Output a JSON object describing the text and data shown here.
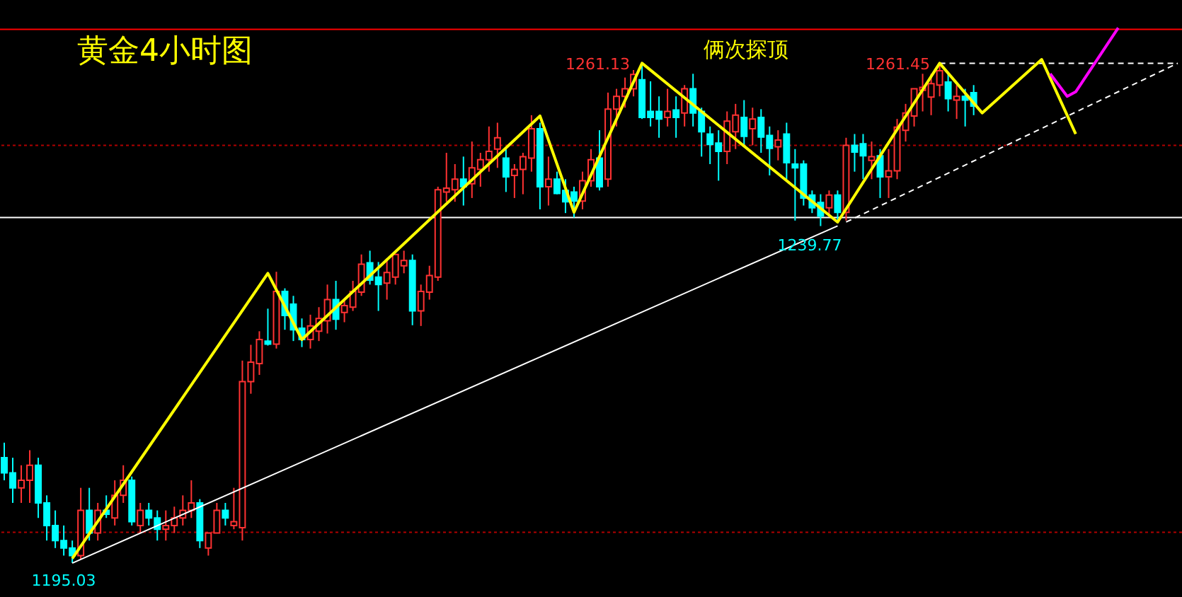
{
  "chart_data": {
    "type": "candlestick",
    "title": "黄金4小时图",
    "categories": [
      null,
      null,
      null,
      null,
      null,
      null,
      null,
      null,
      null,
      null,
      null,
      null,
      null,
      null,
      null,
      null,
      null,
      null,
      null,
      null,
      null,
      null,
      null,
      null,
      null,
      null,
      null,
      null,
      null,
      null,
      null,
      null,
      null,
      null,
      null,
      null,
      null,
      null,
      null,
      null,
      null,
      null,
      null,
      null,
      null,
      null,
      null,
      null,
      null,
      null,
      null,
      null,
      null,
      null,
      null,
      null,
      null,
      null,
      null,
      null,
      null,
      null,
      null,
      null,
      null,
      null,
      null,
      null,
      null,
      null,
      null,
      null,
      null,
      null,
      null,
      null,
      null,
      null,
      null,
      null,
      null,
      null,
      null,
      null,
      null,
      null,
      null,
      null,
      null,
      null,
      null,
      null,
      null,
      null,
      null,
      null,
      null,
      null,
      null,
      null,
      null,
      null,
      null,
      null,
      null,
      null,
      null,
      null,
      null,
      null,
      null,
      null,
      null,
      null,
      null,
      null,
      null,
      null,
      null,
      null,
      null,
      null,
      null,
      null,
      null,
      null,
      null,
      null,
      null,
      null,
      null,
      null,
      null,
      null,
      null,
      null,
      null,
      null,
      null
    ],
    "ohlc": [
      [
        1209,
        1211,
        1206,
        1207
      ],
      [
        1207,
        1209,
        1203,
        1205
      ],
      [
        1205,
        1208,
        1203,
        1206
      ],
      [
        1206,
        1210,
        1203,
        1208
      ],
      [
        1208,
        1209,
        1201,
        1203
      ],
      [
        1203,
        1204,
        1198,
        1200
      ],
      [
        1200,
        1202,
        1197,
        1198
      ],
      [
        1198,
        1200,
        1196,
        1197
      ],
      [
        1197,
        1198,
        1195.03,
        1196
      ],
      [
        1196,
        1205,
        1195.5,
        1202
      ],
      [
        1202,
        1205,
        1198,
        1199
      ],
      [
        1199,
        1203,
        1198,
        1202
      ],
      [
        1202,
        1204,
        1201,
        1201.5
      ],
      [
        1201,
        1206,
        1200,
        1204
      ],
      [
        1204,
        1208,
        1203,
        1206
      ],
      [
        1206,
        1206.5,
        1200,
        1200.5
      ],
      [
        1200,
        1203,
        1199,
        1202
      ],
      [
        1202,
        1203,
        1200,
        1201
      ],
      [
        1201,
        1202,
        1198,
        1199.5
      ],
      [
        1199.5,
        1202,
        1198,
        1200
      ],
      [
        1200,
        1202.5,
        1199,
        1201
      ],
      [
        1201,
        1204,
        1200,
        1202
      ],
      [
        1202,
        1206,
        1201,
        1203
      ],
      [
        1203,
        1203.5,
        1197,
        1198
      ],
      [
        1197,
        1199,
        1196,
        1199
      ],
      [
        1199,
        1203,
        1199,
        1202
      ],
      [
        1202,
        1203,
        1200,
        1201
      ],
      [
        1200,
        1205,
        1199.5,
        1200.5
      ],
      [
        1199.7,
        1221.9,
        1198,
        1219.1
      ],
      [
        1219.1,
        1224,
        1217.5,
        1221.7
      ],
      [
        1221.5,
        1225.8,
        1220,
        1224.7
      ],
      [
        1224.5,
        1228.8,
        1223.9,
        1224.1
      ],
      [
        1224.1,
        1233.7,
        1223.5,
        1231.1
      ],
      [
        1231.1,
        1231.5,
        1226,
        1227.9
      ],
      [
        1229.4,
        1230.5,
        1224.5,
        1226
      ],
      [
        1226.2,
        1227.5,
        1223.7,
        1224.7
      ],
      [
        1224.7,
        1228,
        1223.5,
        1226.5
      ],
      [
        1225.8,
        1229,
        1224.5,
        1227.5
      ],
      [
        1227.2,
        1232,
        1225.5,
        1230
      ],
      [
        1230,
        1232.5,
        1226,
        1227.4
      ],
      [
        1228.3,
        1230,
        1227,
        1229.2
      ],
      [
        1229,
        1232.5,
        1228.5,
        1231.1
      ],
      [
        1231,
        1236,
        1230.5,
        1234.7
      ],
      [
        1234.9,
        1236.5,
        1232,
        1232.6
      ],
      [
        1233,
        1235,
        1228.5,
        1232
      ],
      [
        1232.2,
        1235.5,
        1230,
        1233.6
      ],
      [
        1233,
        1236,
        1232,
        1236
      ],
      [
        1234.5,
        1236.5,
        1233.5,
        1235.2
      ],
      [
        1235.2,
        1236,
        1226.6,
        1228.5
      ],
      [
        1228.5,
        1232,
        1226.5,
        1231.1
      ],
      [
        1231,
        1234.5,
        1230,
        1233.2
      ],
      [
        1233,
        1245,
        1232.5,
        1244.6
      ],
      [
        1244.3,
        1249.5,
        1243,
        1244.8
      ],
      [
        1244.6,
        1248,
        1243,
        1246
      ],
      [
        1246,
        1249,
        1242.5,
        1245
      ],
      [
        1245.4,
        1251,
        1243.5,
        1247.5
      ],
      [
        1247.3,
        1249.5,
        1245,
        1248.6
      ],
      [
        1248.6,
        1253,
        1247,
        1249.7
      ],
      [
        1250,
        1253.5,
        1247.5,
        1251.5
      ],
      [
        1248.8,
        1250,
        1244.3,
        1246.3
      ],
      [
        1246.5,
        1248,
        1243.5,
        1247.3
      ],
      [
        1247.3,
        1249.5,
        1244,
        1249
      ],
      [
        1248.8,
        1254.5,
        1247,
        1252.7
      ],
      [
        1252.7,
        1253.5,
        1242,
        1245
      ],
      [
        1245,
        1249,
        1242.5,
        1246
      ],
      [
        1246,
        1247,
        1244,
        1244.1
      ],
      [
        1244.5,
        1246,
        1241.5,
        1243
      ],
      [
        1244.3,
        1245,
        1240.9,
        1243.1
      ],
      [
        1243.1,
        1247,
        1242,
        1245.8
      ],
      [
        1245.8,
        1250,
        1245,
        1248.6
      ],
      [
        1248.8,
        1252.5,
        1244.5,
        1245
      ],
      [
        1246,
        1257.5,
        1245,
        1255.3
      ],
      [
        1255.3,
        1258,
        1253,
        1257
      ],
      [
        1257,
        1259.5,
        1255.5,
        1258
      ],
      [
        1258,
        1260.5,
        1257,
        1259.9
      ],
      [
        1259.2,
        1261.13,
        1254,
        1254.2
      ],
      [
        1255,
        1259,
        1253,
        1254.2
      ],
      [
        1255,
        1257,
        1251.5,
        1254
      ],
      [
        1254.2,
        1258,
        1253,
        1255
      ],
      [
        1255.2,
        1257,
        1251.5,
        1254.2
      ],
      [
        1254.8,
        1258.5,
        1253,
        1258
      ],
      [
        1258,
        1260,
        1253,
        1254.8
      ],
      [
        1255,
        1255.5,
        1249,
        1252.3
      ],
      [
        1252,
        1253,
        1248,
        1250.6
      ],
      [
        1250.8,
        1252.5,
        1245.8,
        1249.7
      ],
      [
        1249.7,
        1255,
        1248,
        1253.7
      ],
      [
        1252.3,
        1256,
        1250,
        1254.5
      ],
      [
        1254.2,
        1256.5,
        1250.5,
        1251.7
      ],
      [
        1252.7,
        1255.5,
        1250.5,
        1254
      ],
      [
        1254.2,
        1255.3,
        1249.5,
        1251.6
      ],
      [
        1251.8,
        1253,
        1246.5,
        1250.1
      ],
      [
        1250.3,
        1252.5,
        1248.5,
        1251.2
      ],
      [
        1252,
        1253.5,
        1246,
        1248.2
      ],
      [
        1248,
        1250,
        1240.5,
        1247.5
      ],
      [
        1248,
        1248.5,
        1242.5,
        1243.5
      ],
      [
        1243.9,
        1244.5,
        1241.5,
        1242.2
      ],
      [
        1242.9,
        1244,
        1239.77,
        1241.1
      ],
      [
        1242.2,
        1244.5,
        1241,
        1243.9
      ],
      [
        1243.9,
        1244.5,
        1240.2,
        1241.6
      ],
      [
        1241.6,
        1251.5,
        1240.5,
        1250.5
      ],
      [
        1250.5,
        1252,
        1247,
        1249.6
      ],
      [
        1250.7,
        1252,
        1246,
        1249.1
      ],
      [
        1248.5,
        1251,
        1246,
        1249
      ],
      [
        1249.1,
        1250,
        1243.5,
        1246.3
      ],
      [
        1246.3,
        1250,
        1243.5,
        1247.1
      ],
      [
        1247.1,
        1254,
        1246,
        1252.9
      ],
      [
        1252.5,
        1256,
        1251,
        1254.8
      ],
      [
        1254.4,
        1258,
        1253,
        1258
      ],
      [
        1257.8,
        1260,
        1255,
        1258.2
      ],
      [
        1256.9,
        1260,
        1254.5,
        1258.7
      ],
      [
        1258.5,
        1261.45,
        1257,
        1260.4
      ],
      [
        1258.9,
        1260,
        1255,
        1256.7
      ],
      [
        1256.5,
        1258.5,
        1254,
        1257
      ],
      [
        1257,
        1258,
        1253,
        1256.5
      ],
      [
        1257.5,
        1258.5,
        1254.5,
        1255.7
      ],
      null,
      null,
      null,
      null,
      null,
      null,
      null,
      null,
      null,
      null,
      null,
      null,
      null,
      null,
      null,
      null,
      null,
      null,
      null,
      null,
      null,
      null,
      null,
      null
    ],
    "colors": [
      "#00ffff",
      "#00ffff",
      "#ff3232",
      "#ff3232",
      "#00ffff",
      "#00ffff",
      "#00ffff",
      "#00ffff",
      "#00ffff",
      "#ff3232",
      "#00ffff",
      "#ff3232",
      "#00ffff",
      "#ff3232",
      "#ff3232",
      "#00ffff",
      "#ff3232",
      "#00ffff",
      "#00ffff",
      "#ff3232",
      "#ff3232",
      "#ff3232",
      "#ff3232",
      "#00ffff",
      "#ff3232",
      "#ff3232",
      "#00ffff",
      "#ff3232",
      "#ff3232",
      "#ff3232",
      "#ff3232",
      "#00ffff",
      "#ff3232",
      "#00ffff",
      "#00ffff",
      "#00ffff",
      "#ff3232",
      "#ff3232",
      "#ff3232",
      "#00ffff",
      "#ff3232",
      "#ff3232",
      "#ff3232",
      "#00ffff",
      "#00ffff",
      "#ff3232",
      "#ff3232",
      "#ff3232",
      "#00ffff",
      "#ff3232",
      "#ff3232",
      "#ff3232",
      "#ff3232",
      "#ff3232",
      "#00ffff",
      "#ff3232",
      "#ff3232",
      "#ff3232",
      "#ff3232",
      "#00ffff",
      "#ff3232",
      "#ff3232",
      "#ff3232",
      "#00ffff",
      "#ff3232",
      "#00ffff",
      "#00ffff",
      "#00ffff",
      "#ff3232",
      "#ff3232",
      "#00ffff",
      "#ff3232",
      "#ff3232",
      "#ff3232",
      "#ff3232",
      "#00ffff",
      "#00ffff",
      "#00ffff",
      "#ff3232",
      "#00ffff",
      "#ff3232",
      "#00ffff",
      "#00ffff",
      "#00ffff",
      "#00ffff",
      "#ff3232",
      "#ff3232",
      "#00ffff",
      "#ff3232",
      "#00ffff",
      "#00ffff",
      "#ff3232",
      "#00ffff",
      "#00ffff",
      "#00ffff",
      "#00ffff",
      "#00ffff",
      "#ff3232",
      "#00ffff",
      "#ff3232",
      "#00ffff",
      "#00ffff",
      "#ff3232",
      "#00ffff",
      "#ff3232",
      "#ff3232",
      "#ff3232",
      "#ff3232",
      "#ff3232",
      "#ff3232",
      "#ff3232",
      "#00ffff",
      "#ff3232",
      "#00ffff",
      "#00ffff",
      null,
      null,
      null,
      null,
      null,
      null,
      null,
      null,
      null,
      null,
      null,
      null,
      null,
      null,
      null,
      null,
      null,
      null,
      null,
      null,
      null,
      null,
      null,
      null
    ],
    "ylim": [
      1190.5,
      1269.8
    ],
    "tick_labels": false,
    "series": [
      {
        "type": "line",
        "color": "#ffffff",
        "line_style": "solid",
        "values": [
          null,
          null,
          null,
          null,
          null,
          null,
          null,
          null,
          1195.0,
          null,
          null,
          null,
          null,
          null,
          null,
          null,
          null,
          null,
          null,
          null,
          null,
          null,
          null,
          null,
          null,
          null,
          null,
          null,
          null,
          null,
          null,
          null,
          null,
          null,
          null,
          null,
          null,
          null,
          null,
          null,
          null,
          null,
          null,
          null,
          null,
          null,
          null,
          null,
          null,
          null,
          null,
          null,
          null,
          null,
          null,
          null,
          null,
          null,
          null,
          null,
          null,
          null,
          null,
          null,
          null,
          null,
          null,
          null,
          null,
          null,
          null,
          null,
          null,
          null,
          null,
          null,
          null,
          null,
          null,
          null,
          null,
          null,
          null,
          null,
          null,
          null,
          null,
          null,
          null,
          null,
          null,
          null,
          null,
          null,
          null,
          null,
          null,
          null,
          1239.8,
          null,
          null,
          null,
          null,
          null,
          null,
          null,
          null,
          null,
          null,
          null,
          null,
          null,
          null,
          null,
          null,
          null,
          null,
          null,
          null,
          null,
          null,
          null,
          null,
          null,
          null,
          null,
          null,
          null,
          null,
          null,
          null,
          null,
          null,
          null,
          null,
          null,
          null,
          null,
          null
        ]
      },
      {
        "type": "line",
        "color": "#ffffff",
        "line_style": "dashed",
        "values": [
          null,
          null,
          null,
          null,
          null,
          null,
          null,
          null,
          null,
          null,
          null,
          null,
          null,
          null,
          null,
          null,
          null,
          null,
          null,
          null,
          null,
          null,
          null,
          null,
          null,
          null,
          null,
          null,
          null,
          null,
          null,
          null,
          null,
          null,
          null,
          null,
          null,
          null,
          null,
          null,
          null,
          null,
          null,
          null,
          null,
          null,
          null,
          null,
          null,
          null,
          null,
          null,
          null,
          null,
          null,
          null,
          null,
          null,
          null,
          null,
          null,
          null,
          null,
          null,
          null,
          null,
          null,
          null,
          null,
          null,
          null,
          null,
          null,
          null,
          null,
          null,
          null,
          null,
          null,
          null,
          null,
          null,
          null,
          null,
          null,
          null,
          null,
          null,
          null,
          null,
          null,
          null,
          null,
          null,
          null,
          null,
          null,
          null,
          null,
          1240.3,
          null,
          null,
          null,
          null,
          null,
          null,
          null,
          null,
          null,
          null,
          null,
          null,
          null,
          null,
          null,
          null,
          null,
          null,
          null,
          null,
          null,
          null,
          null,
          null,
          null,
          null,
          null,
          null,
          null,
          null,
          null,
          null,
          null,
          null,
          null,
          null,
          null,
          null,
          1261.4
        ]
      },
      {
        "type": "line",
        "color": "#ffffff",
        "line_style": "dashed",
        "values": [
          null,
          null,
          null,
          null,
          null,
          null,
          null,
          null,
          null,
          null,
          null,
          null,
          null,
          null,
          null,
          null,
          null,
          null,
          null,
          null,
          null,
          null,
          null,
          null,
          null,
          null,
          null,
          null,
          null,
          null,
          null,
          null,
          null,
          null,
          null,
          null,
          null,
          null,
          null,
          null,
          null,
          null,
          null,
          null,
          null,
          null,
          null,
          null,
          null,
          null,
          null,
          null,
          null,
          null,
          null,
          null,
          null,
          null,
          null,
          null,
          null,
          null,
          null,
          null,
          null,
          null,
          null,
          null,
          null,
          null,
          null,
          null,
          null,
          null,
          null,
          null,
          null,
          null,
          null,
          null,
          null,
          null,
          null,
          null,
          null,
          null,
          null,
          null,
          null,
          null,
          null,
          null,
          null,
          null,
          null,
          null,
          null,
          null,
          null,
          null,
          null,
          null,
          null,
          null,
          null,
          null,
          null,
          null,
          null,
          null,
          1261.4,
          null,
          null,
          null,
          null,
          null,
          null,
          null,
          null,
          null,
          null,
          null,
          null,
          null,
          null,
          null,
          null,
          null,
          null,
          null,
          null,
          null,
          null,
          null,
          null,
          null,
          null,
          null,
          1261.4
        ]
      },
      {
        "type": "line",
        "color": "#ffff00",
        "line_style": "solid",
        "values": [
          null,
          null,
          null,
          null,
          null,
          null,
          null,
          null,
          1195.6,
          null,
          null,
          null,
          null,
          null,
          null,
          null,
          null,
          null,
          null,
          null,
          null,
          null,
          null,
          null,
          null,
          null,
          null,
          null,
          null,
          null,
          null,
          1233.5,
          null,
          null,
          null,
          1224.7,
          null,
          null,
          null,
          null,
          null,
          null,
          null,
          null,
          null,
          null,
          null,
          null,
          null,
          null,
          null,
          null,
          null,
          null,
          null,
          null,
          null,
          null,
          null,
          null,
          null,
          null,
          null,
          1254.4,
          null,
          null,
          null,
          1241.6,
          null,
          null,
          null,
          null,
          null,
          null,
          null,
          1261.4,
          null,
          null,
          null,
          null,
          null,
          null,
          null,
          null,
          null,
          null,
          null,
          null,
          null,
          null,
          null,
          null,
          null,
          null,
          null,
          null,
          null,
          null,
          1240.3,
          null,
          null,
          null,
          null,
          null,
          null,
          null,
          null,
          null,
          null,
          null,
          1261.4,
          null,
          null,
          null,
          null,
          1254.8,
          null,
          null,
          null,
          null,
          null,
          null,
          1261.9,
          null,
          null,
          null,
          1252.0,
          null,
          null,
          null,
          null,
          null,
          null,
          null,
          null,
          null,
          null,
          null,
          null
        ]
      },
      {
        "type": "line",
        "color": "#ff00ff",
        "line_style": "solid",
        "values": [
          null,
          null,
          null,
          null,
          null,
          null,
          null,
          null,
          null,
          null,
          null,
          null,
          null,
          null,
          null,
          null,
          null,
          null,
          null,
          null,
          null,
          null,
          null,
          null,
          null,
          null,
          null,
          null,
          null,
          null,
          null,
          null,
          null,
          null,
          null,
          null,
          null,
          null,
          null,
          null,
          null,
          null,
          null,
          null,
          null,
          null,
          null,
          null,
          null,
          null,
          null,
          null,
          null,
          null,
          null,
          null,
          null,
          null,
          null,
          null,
          null,
          null,
          null,
          null,
          null,
          null,
          null,
          null,
          null,
          null,
          null,
          null,
          null,
          null,
          null,
          null,
          null,
          null,
          null,
          null,
          null,
          null,
          null,
          null,
          null,
          null,
          null,
          null,
          null,
          null,
          null,
          null,
          null,
          null,
          null,
          null,
          null,
          null,
          null,
          null,
          null,
          null,
          null,
          null,
          null,
          null,
          null,
          null,
          null,
          null,
          null,
          null,
          null,
          null,
          null,
          null,
          null,
          null,
          null,
          null,
          null,
          null,
          null,
          1260.0,
          null,
          1257.0,
          1257.6,
          null,
          null,
          null,
          null,
          1266.1,
          null,
          null,
          null,
          null,
          null,
          null,
          null
        ]
      }
    ],
    "ref_lines": [
      {
        "axis": "y",
        "value": 1265.9,
        "color": "#ff0000",
        "line_style": "solid"
      },
      {
        "axis": "y",
        "value": 1250.5,
        "color": "#b00000",
        "line_style": "dotted"
      },
      {
        "axis": "y",
        "value": 1240.9,
        "color": "#ffffff",
        "line_style": "solid"
      },
      {
        "axis": "y",
        "value": 1199.1,
        "color": "#b00000",
        "line_style": "dotted"
      }
    ],
    "annotations": [
      "俩次探顶",
      "1261.13",
      "1261.45",
      "1239.77",
      "1195.03"
    ]
  }
}
